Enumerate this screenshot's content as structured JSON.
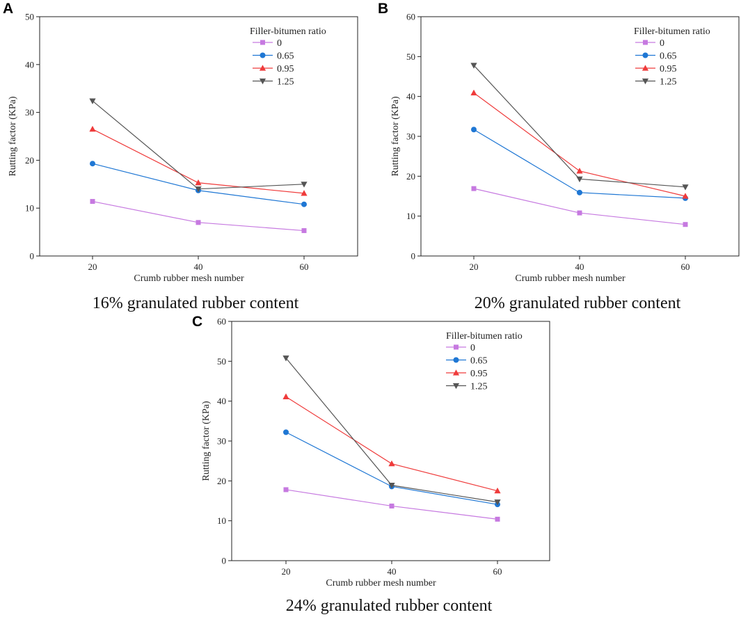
{
  "chart_data": [
    {
      "type": "line",
      "panel_label": "A",
      "caption": "16% granulated rubber content",
      "xlabel": "Crumb rubber mesh number",
      "ylabel": "Rutting factor (KPa)",
      "categories": [
        "20",
        "40",
        "60"
      ],
      "ylim": [
        0,
        50
      ],
      "yticks": [
        0,
        10,
        20,
        30,
        40,
        50
      ],
      "legend_title": "Filler-bitumen ratio",
      "legend_position": "top-right",
      "series": [
        {
          "name": "0",
          "values": [
            11.4,
            7.0,
            5.3
          ]
        },
        {
          "name": "0.65",
          "values": [
            19.3,
            13.7,
            10.8
          ]
        },
        {
          "name": "0.95",
          "values": [
            26.5,
            15.3,
            13.1
          ]
        },
        {
          "name": "1.25",
          "values": [
            32.4,
            14.0,
            15.0
          ]
        }
      ]
    },
    {
      "type": "line",
      "panel_label": "B",
      "caption": "20% granulated rubber content",
      "xlabel": "Crumb rubber mesh number",
      "ylabel": "Rutting factor (KPa)",
      "categories": [
        "20",
        "40",
        "60"
      ],
      "ylim": [
        0,
        60
      ],
      "yticks": [
        0,
        10,
        20,
        30,
        40,
        50,
        60
      ],
      "legend_title": "Filler-bitumen ratio",
      "legend_position": "top-right",
      "series": [
        {
          "name": "0",
          "values": [
            16.9,
            10.8,
            7.9
          ]
        },
        {
          "name": "0.65",
          "values": [
            31.7,
            15.9,
            14.5
          ]
        },
        {
          "name": "0.95",
          "values": [
            40.9,
            21.3,
            15.0
          ]
        },
        {
          "name": "1.25",
          "values": [
            47.8,
            19.3,
            17.3
          ]
        }
      ]
    },
    {
      "type": "line",
      "panel_label": "C",
      "caption": "24% granulated rubber content",
      "xlabel": "Crumb rubber mesh number",
      "ylabel": "Rutting factor (KPa)",
      "categories": [
        "20",
        "40",
        "60"
      ],
      "ylim": [
        0,
        60
      ],
      "yticks": [
        0,
        10,
        20,
        30,
        40,
        50,
        60
      ],
      "legend_title": "Filler-bitumen ratio",
      "legend_position": "top-right",
      "series": [
        {
          "name": "0",
          "values": [
            17.8,
            13.7,
            10.4
          ]
        },
        {
          "name": "0.65",
          "values": [
            32.2,
            18.6,
            14.1
          ]
        },
        {
          "name": "0.95",
          "values": [
            41.1,
            24.3,
            17.5
          ]
        },
        {
          "name": "1.25",
          "values": [
            50.8,
            18.9,
            14.7
          ]
        }
      ]
    }
  ],
  "series_styles": [
    {
      "name": "0",
      "color": "#c679e0",
      "marker": "square"
    },
    {
      "name": "0.65",
      "color": "#1f77d4",
      "marker": "circle"
    },
    {
      "name": "0.95",
      "color": "#ef3b3b",
      "marker": "triangle-up"
    },
    {
      "name": "1.25",
      "color": "#555555",
      "marker": "triangle-down"
    }
  ]
}
